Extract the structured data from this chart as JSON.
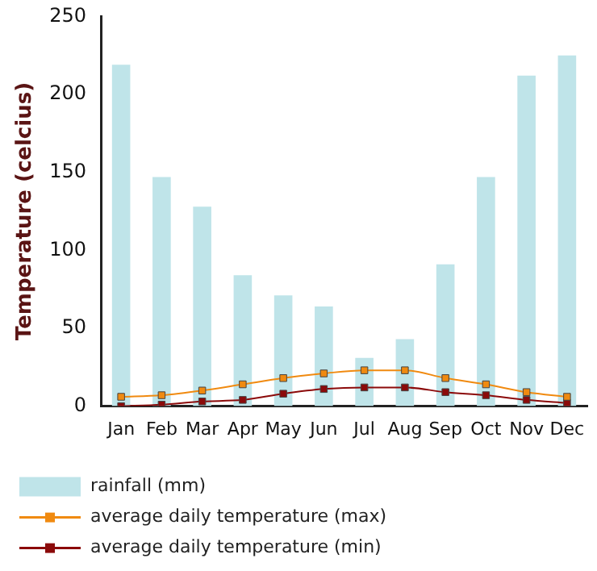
{
  "chart_data": {
    "type": "bar",
    "ylabel": "Temperature (celcius)",
    "categories": [
      "Jan",
      "Feb",
      "Mar",
      "Apr",
      "May",
      "Jun",
      "Jul",
      "Aug",
      "Sep",
      "Oct",
      "Nov",
      "Dec"
    ],
    "series": [
      {
        "name": "rainfall (mm)",
        "color": "#bfe4e9",
        "values": [
          219,
          147,
          128,
          84,
          71,
          64,
          31,
          43,
          91,
          147,
          212,
          225
        ]
      },
      {
        "name": "average daily temperature (max)",
        "type": "line",
        "color": "#f08a10",
        "values": [
          6,
          7,
          10,
          14,
          18,
          21,
          23,
          23,
          18,
          14,
          9,
          6
        ]
      },
      {
        "name": "average daily temperature (min)",
        "type": "line",
        "color": "#8b0a0a",
        "values": [
          0,
          1,
          3,
          4,
          8,
          11,
          12,
          12,
          9,
          7,
          4,
          2
        ]
      }
    ],
    "ylim": [
      0,
      250
    ],
    "yticks": [
      0,
      50,
      100,
      150,
      200,
      250
    ],
    "grid": false,
    "legend": "bottom",
    "marker": "square"
  }
}
